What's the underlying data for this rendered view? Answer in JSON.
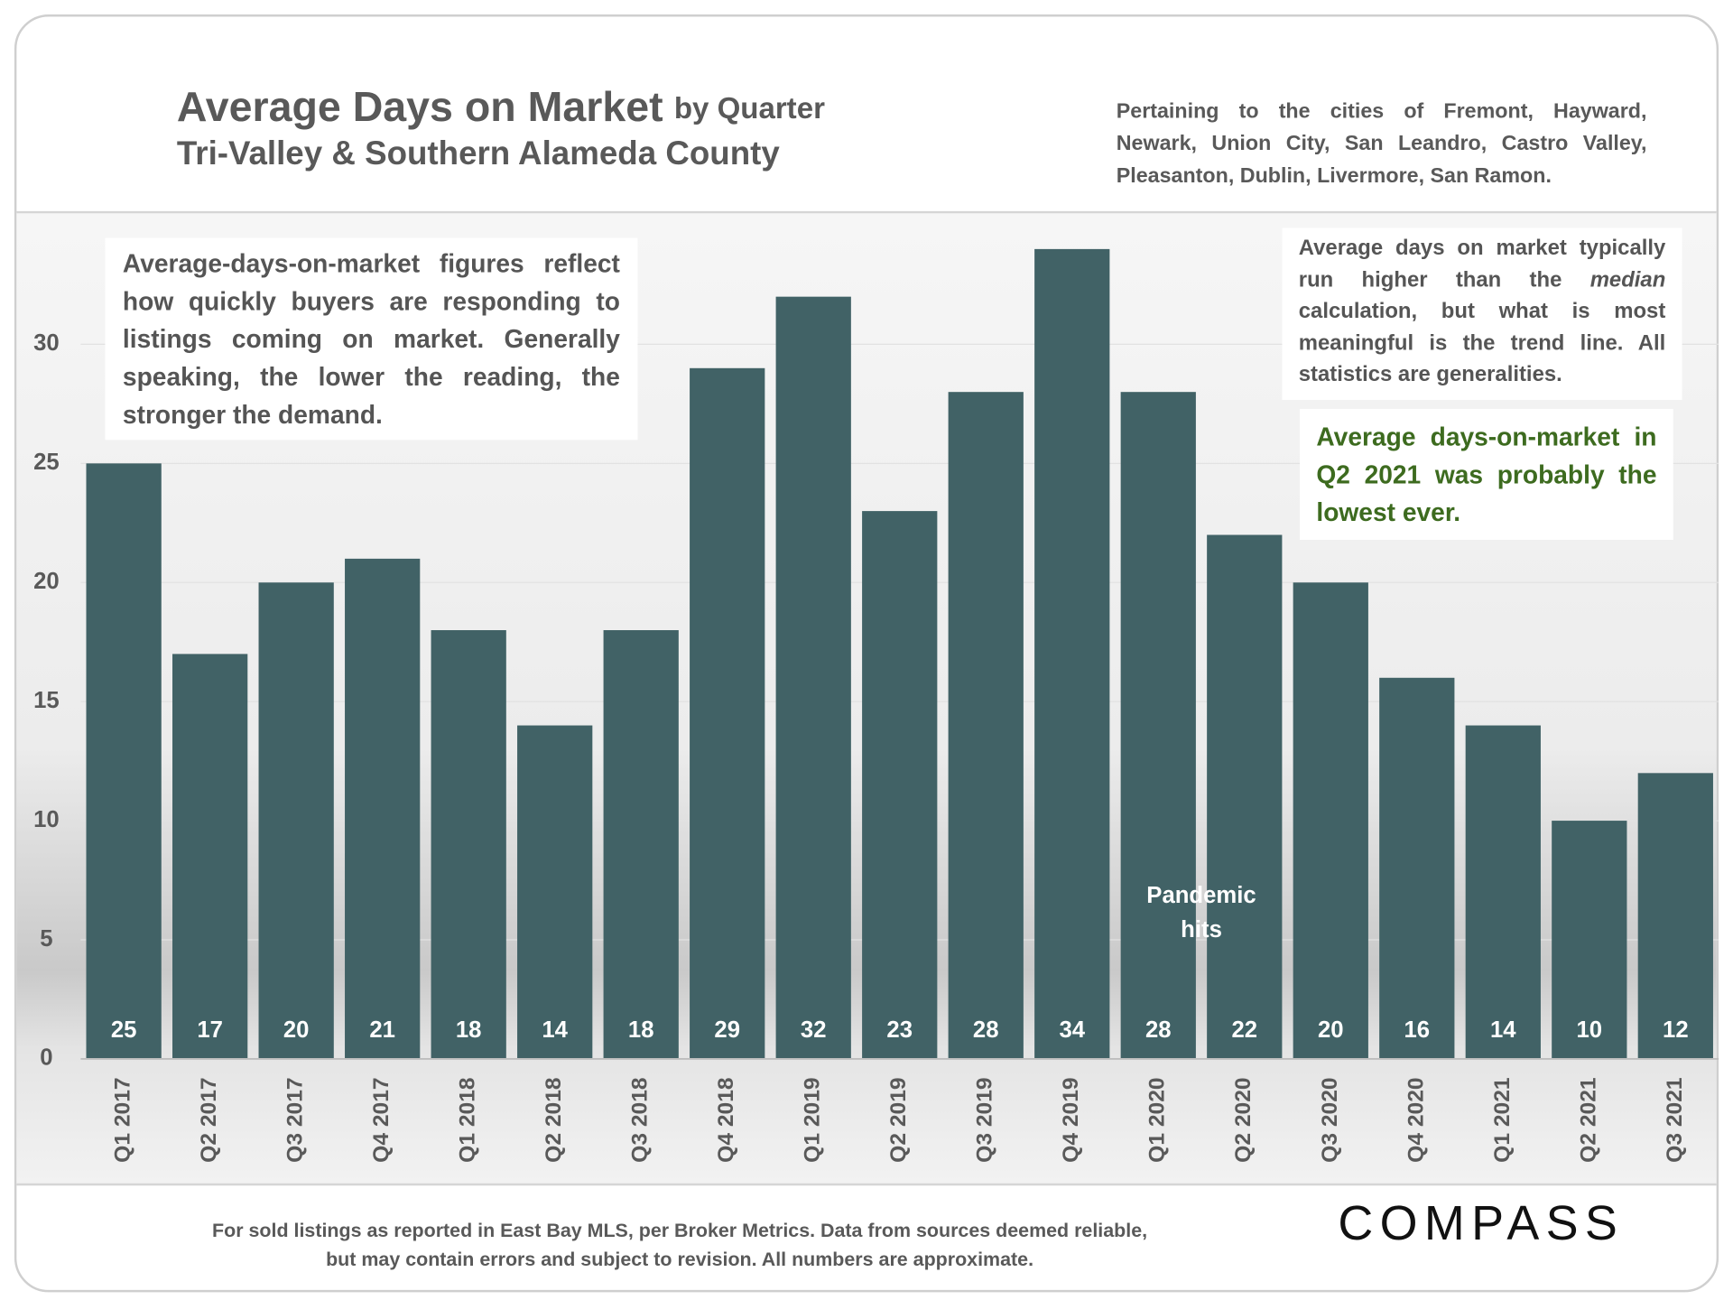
{
  "chart_data": {
    "type": "bar",
    "title": "Average Days on Market",
    "title_suffix": "by Quarter",
    "subtitle": "Tri-Valley & Southern Alameda County",
    "note_top_right": "Pertaining to the cities of Fremont, Hayward, Newark, Union City, San Leandro, Castro Valley, Pleasanton, Dublin, Livermore, San Ramon.",
    "annotation_left": "Average-days-on-market figures reflect how quickly buyers are responding to listings coming on market. Generally speaking, the lower the reading, the stronger the demand.",
    "annotation_right": [
      "Average days on market typically run higher than the ",
      "median",
      " calculation, but what is most meaningful is the trend line. All statistics are generalities."
    ],
    "annotation_green": "Average days-on-market in Q2 2021 was probably the lowest ever.",
    "annotation_pandemic": [
      "Pandemic",
      "hits"
    ],
    "footer": "For sold listings as reported in East Bay MLS, per Broker Metrics. Data from sources deemed reliable, but may contain errors and subject to revision. All numbers are approximate.",
    "brand": "COMPASS",
    "categories": [
      "Q1 2017",
      "Q2 2017",
      "Q3 2017",
      "Q4 2017",
      "Q1 2018",
      "Q2 2018",
      "Q3 2018",
      "Q4 2018",
      "Q1 2019",
      "Q2 2019",
      "Q3 2019",
      "Q4 2019",
      "Q1 2020",
      "Q2 2020",
      "Q3 2020",
      "Q4 2020",
      "Q1 2021",
      "Q2 2021",
      "Q3 2021"
    ],
    "values": [
      25,
      17,
      20,
      21,
      18,
      14,
      18,
      29,
      32,
      23,
      28,
      34,
      28,
      22,
      20,
      16,
      14,
      10,
      12
    ],
    "color": "#416266",
    "ylim": [
      0,
      35.5
    ],
    "yticks": [
      0,
      5,
      10,
      15,
      20,
      25,
      30
    ],
    "grid": true
  }
}
